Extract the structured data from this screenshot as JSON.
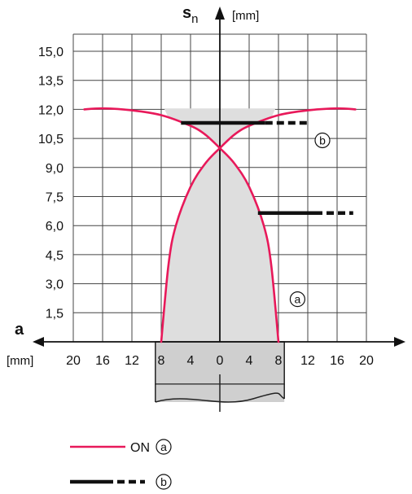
{
  "chart_data": {
    "type": "line",
    "y_axis": {
      "title": "s",
      "title_sub": "n",
      "unit": "[mm]",
      "range": [
        0,
        16.5
      ],
      "ticks": [
        1.5,
        3.0,
        4.5,
        6.0,
        7.5,
        9.0,
        10.5,
        12.0,
        13.5,
        15.0
      ],
      "tick_labels": [
        "1,5",
        "3,0",
        "4,5",
        "6,0",
        "7,5",
        "9,0",
        "10,5",
        "12,0",
        "13,5",
        "15,0"
      ]
    },
    "x_axis": {
      "title": "a",
      "unit": "[mm]",
      "range": [
        -22,
        25
      ],
      "ticks": [
        -20,
        -16,
        -12,
        -8,
        -4,
        0,
        4,
        8,
        12,
        16,
        20
      ],
      "tick_labels": [
        "20",
        "16",
        "12",
        "8",
        "4",
        "0",
        "4",
        "8",
        "12",
        "16",
        "20"
      ]
    },
    "grid": true,
    "series": [
      {
        "name": "ON",
        "marker": "a",
        "color": "#e8195a",
        "curves": [
          [
            [
              -8.0,
              0.0
            ],
            [
              -7.0,
              4.0
            ],
            [
              -6.0,
              6.0
            ],
            [
              -4.0,
              8.0
            ],
            [
              -2.0,
              9.2
            ],
            [
              0.0,
              10.0
            ],
            [
              2.0,
              10.7
            ],
            [
              4.0,
              11.15
            ],
            [
              8.0,
              11.7
            ],
            [
              12.0,
              11.95
            ],
            [
              16.0,
              12.05
            ],
            [
              18.5,
              12.0
            ]
          ],
          [
            [
              8.0,
              0.0
            ],
            [
              7.0,
              4.0
            ],
            [
              6.0,
              6.0
            ],
            [
              4.0,
              8.0
            ],
            [
              2.0,
              9.2
            ],
            [
              0.0,
              10.0
            ],
            [
              -2.0,
              10.7
            ],
            [
              -4.0,
              11.15
            ],
            [
              -8.0,
              11.7
            ],
            [
              -12.0,
              11.95
            ],
            [
              -16.0,
              12.05
            ],
            [
              -18.5,
              12.0
            ]
          ]
        ]
      },
      {
        "name": "",
        "marker": "b",
        "color": "#111111",
        "bars": [
          {
            "y": 11.3,
            "x_solid": [
              -5.3,
              6.2
            ],
            "x_dashed": [
              6.2,
              12.2
            ]
          },
          {
            "y": 6.65,
            "x_solid": [
              5.2,
              13.0
            ],
            "x_dashed": [
              13.0,
              18.2
            ]
          }
        ]
      }
    ],
    "shaded_region": {
      "color": "#dedede",
      "description": ""
    },
    "sensor": {
      "x_range": [
        -8.8,
        8.8
      ],
      "label_center": "0"
    },
    "legend": {
      "placement": "bottom-left",
      "entries": [
        {
          "label": "ON",
          "marker": "a",
          "style": "solid",
          "color": "#e8195a"
        },
        {
          "label": "",
          "marker": "b",
          "style": "solid-dashed",
          "color": "#111111"
        }
      ]
    }
  }
}
